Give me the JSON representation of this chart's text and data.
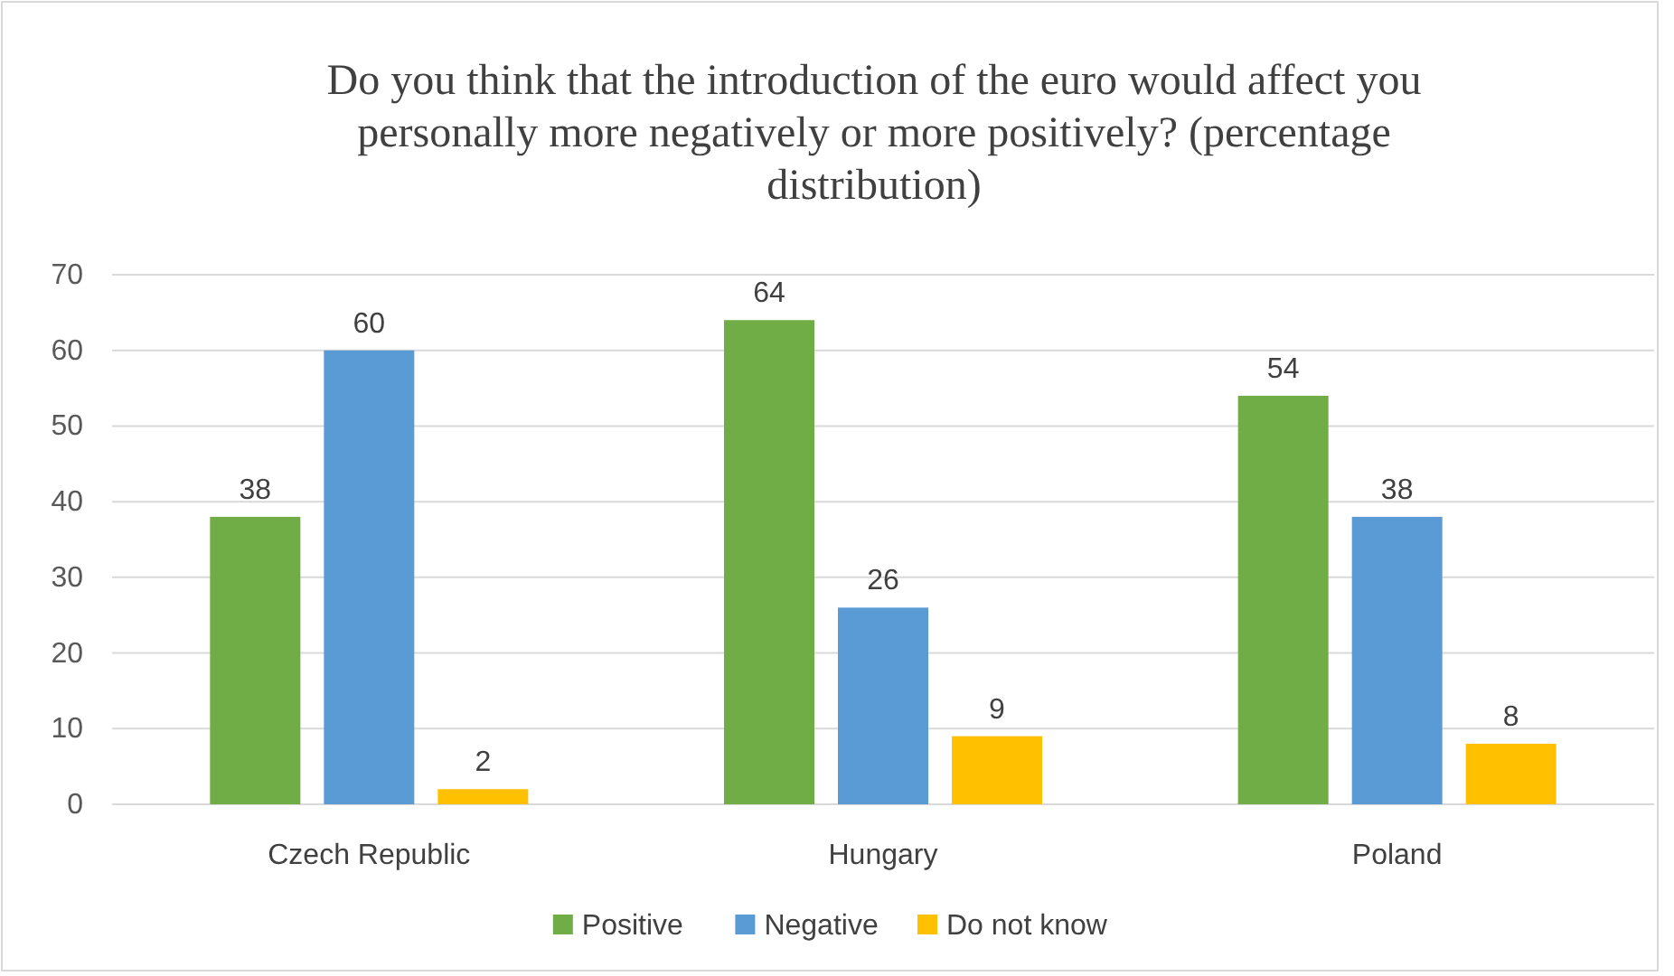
{
  "chart_data": {
    "type": "bar",
    "title": "Do you think that the introduction of the euro would affect you personally more negatively or more positively? (percentage distribution)",
    "categories": [
      "Czech Republic",
      "Hungary",
      "Poland"
    ],
    "series": [
      {
        "name": "Positive",
        "color": "#70ad47",
        "values": [
          38,
          64,
          54
        ]
      },
      {
        "name": "Negative",
        "color": "#5b9bd5",
        "values": [
          60,
          26,
          38
        ]
      },
      {
        "name": "Do not know",
        "color": "#ffc000",
        "values": [
          2,
          9,
          8
        ]
      }
    ],
    "ylim": [
      0,
      70
    ],
    "yticks": [
      0,
      10,
      20,
      30,
      40,
      50,
      60,
      70
    ],
    "grid": "y",
    "data_labels": true,
    "legend": "bottom"
  }
}
